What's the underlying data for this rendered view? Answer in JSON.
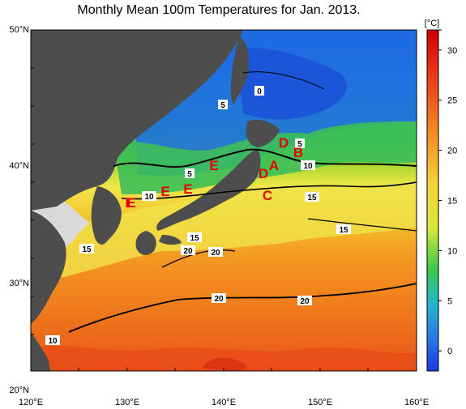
{
  "title": "Monthly Mean 100m Temperatures for Jan. 2013.",
  "colorbar": {
    "unit": "[°C]",
    "ticks": [
      32,
      30,
      25,
      20,
      15,
      10,
      5,
      0
    ],
    "tick_labels": [
      "",
      "30",
      "25",
      "20",
      "15",
      "10",
      "5",
      "0"
    ]
  },
  "axes": {
    "lat_labels": [
      "50°N",
      "40°N",
      "30°N",
      "20°N"
    ],
    "lon_labels": [
      "120°E",
      "130°E",
      "140°E",
      "150°E",
      "160°E"
    ]
  },
  "contour_labels": [
    "0",
    "5",
    "5",
    "5",
    "10",
    "10",
    "10",
    "15",
    "15",
    "15",
    "15",
    "20",
    "20",
    "20",
    "20"
  ],
  "region_markers": [
    "A",
    "B",
    "C",
    "D",
    "D",
    "E",
    "E",
    "E",
    "E",
    "E"
  ],
  "colors": {
    "land": "#4d4d4d",
    "mainland": "#d9d9d9",
    "cold": "#1a6bd6",
    "warm": "#f07a1e"
  }
}
